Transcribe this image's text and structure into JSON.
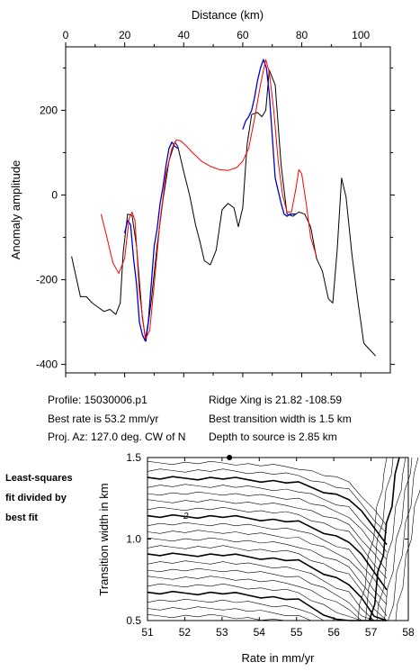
{
  "chart_data": [
    {
      "type": "line",
      "xlabel": "Distance (km)",
      "ylabel": "Anomaly amplitude",
      "xlim": [
        0,
        110
      ],
      "ylim": [
        -420,
        350
      ],
      "x_ticks": [
        0,
        20,
        40,
        60,
        80,
        100
      ],
      "y_ticks": [
        -400,
        -200,
        0,
        200
      ],
      "x_axis_position": "top",
      "grid": false,
      "series": [
        {
          "color": "#000000",
          "x": [
            2,
            5,
            7,
            9,
            11,
            13,
            15,
            17,
            18.5,
            19.5,
            21,
            22.5,
            24,
            26,
            27.2,
            29,
            31,
            33,
            35,
            37,
            38,
            40,
            42,
            44,
            45.5,
            47,
            49,
            51,
            53,
            55,
            57,
            58.5,
            60,
            61.5,
            63,
            65,
            66.5,
            67.8,
            69,
            71,
            73,
            75,
            77,
            79,
            81,
            83,
            85,
            87,
            89,
            90.5,
            92,
            93.5,
            95,
            97,
            99,
            101,
            103,
            105
          ],
          "y": [
            -145,
            -240,
            -240,
            -255,
            -265,
            -275,
            -270,
            -282,
            -255,
            -135,
            -45,
            -48,
            -120,
            -290,
            -345,
            -250,
            -120,
            -10,
            80,
            125,
            115,
            55,
            0,
            -70,
            -110,
            -155,
            -165,
            -130,
            -35,
            -20,
            -30,
            -75,
            -30,
            120,
            190,
            195,
            185,
            200,
            295,
            260,
            70,
            -45,
            -50,
            -40,
            -45,
            -75,
            -150,
            -180,
            -245,
            -255,
            -130,
            40,
            -5,
            -140,
            -250,
            -350,
            -365,
            -380
          ]
        },
        {
          "color": "#0000cc",
          "x": [
            20,
            21,
            22,
            23,
            24,
            25,
            26,
            27,
            28,
            29,
            30,
            31,
            32,
            33,
            34,
            35,
            36,
            37,
            38,
            60,
            61,
            62,
            63,
            64,
            65,
            66,
            67,
            68,
            69,
            70,
            71,
            72,
            73,
            74,
            75,
            76,
            77,
            78
          ],
          "y": [
            -90,
            -60,
            -70,
            -150,
            -210,
            -300,
            -330,
            -345,
            -300,
            -210,
            -120,
            -80,
            -20,
            20,
            70,
            110,
            125,
            115,
            110,
            155,
            175,
            185,
            200,
            230,
            270,
            300,
            320,
            300,
            240,
            140,
            40,
            10,
            -20,
            -45,
            -50,
            -45,
            -45,
            -45
          ]
        },
        {
          "color": "#ff0000",
          "x": [
            12,
            14,
            16,
            18,
            20,
            21.5,
            22.5,
            23.5,
            25,
            27,
            28.5,
            30,
            32,
            34,
            36,
            37.5,
            39,
            41,
            43,
            46,
            49,
            52,
            55,
            58,
            60,
            62,
            64,
            66,
            67.8,
            69,
            70.5,
            72,
            73.5,
            75,
            76.5,
            78,
            79,
            80,
            81.5,
            83,
            85
          ],
          "y": [
            -45,
            -100,
            -160,
            -185,
            -150,
            -55,
            -40,
            -60,
            -230,
            -340,
            -320,
            -210,
            -60,
            50,
            110,
            130,
            128,
            115,
            100,
            80,
            68,
            60,
            58,
            65,
            80,
            110,
            180,
            260,
            320,
            290,
            200,
            80,
            0,
            -40,
            -40,
            15,
            60,
            50,
            -20,
            -100,
            -145
          ]
        }
      ]
    },
    {
      "type": "contour",
      "xlabel": "Rate in mm/yr",
      "ylabel": "Transition width in km",
      "xlim": [
        51,
        58
      ],
      "ylim": [
        0.5,
        1.5
      ],
      "x_ticks": [
        51,
        52,
        53,
        54,
        55,
        56,
        57,
        58
      ],
      "y_ticks": [
        0.5,
        1.0,
        1.5
      ],
      "contour_label": "2",
      "best_fit_point": {
        "x": 53.2,
        "y": 1.5
      },
      "grid": false
    }
  ],
  "info": {
    "profile": "Profile: 15030006.p1",
    "best_rate": "Best rate is 53.2 mm/yr",
    "proj_az": "Proj. Az: 127.0 deg. CW of N",
    "ridge_xing": "Ridge Xing is 21.82 -108.59",
    "best_width": "Best transition width is 1.5 km",
    "depth": "Depth to source is   2.85 km"
  },
  "side_note": [
    "Least-squares",
    "fit divided by",
    "best fit"
  ]
}
